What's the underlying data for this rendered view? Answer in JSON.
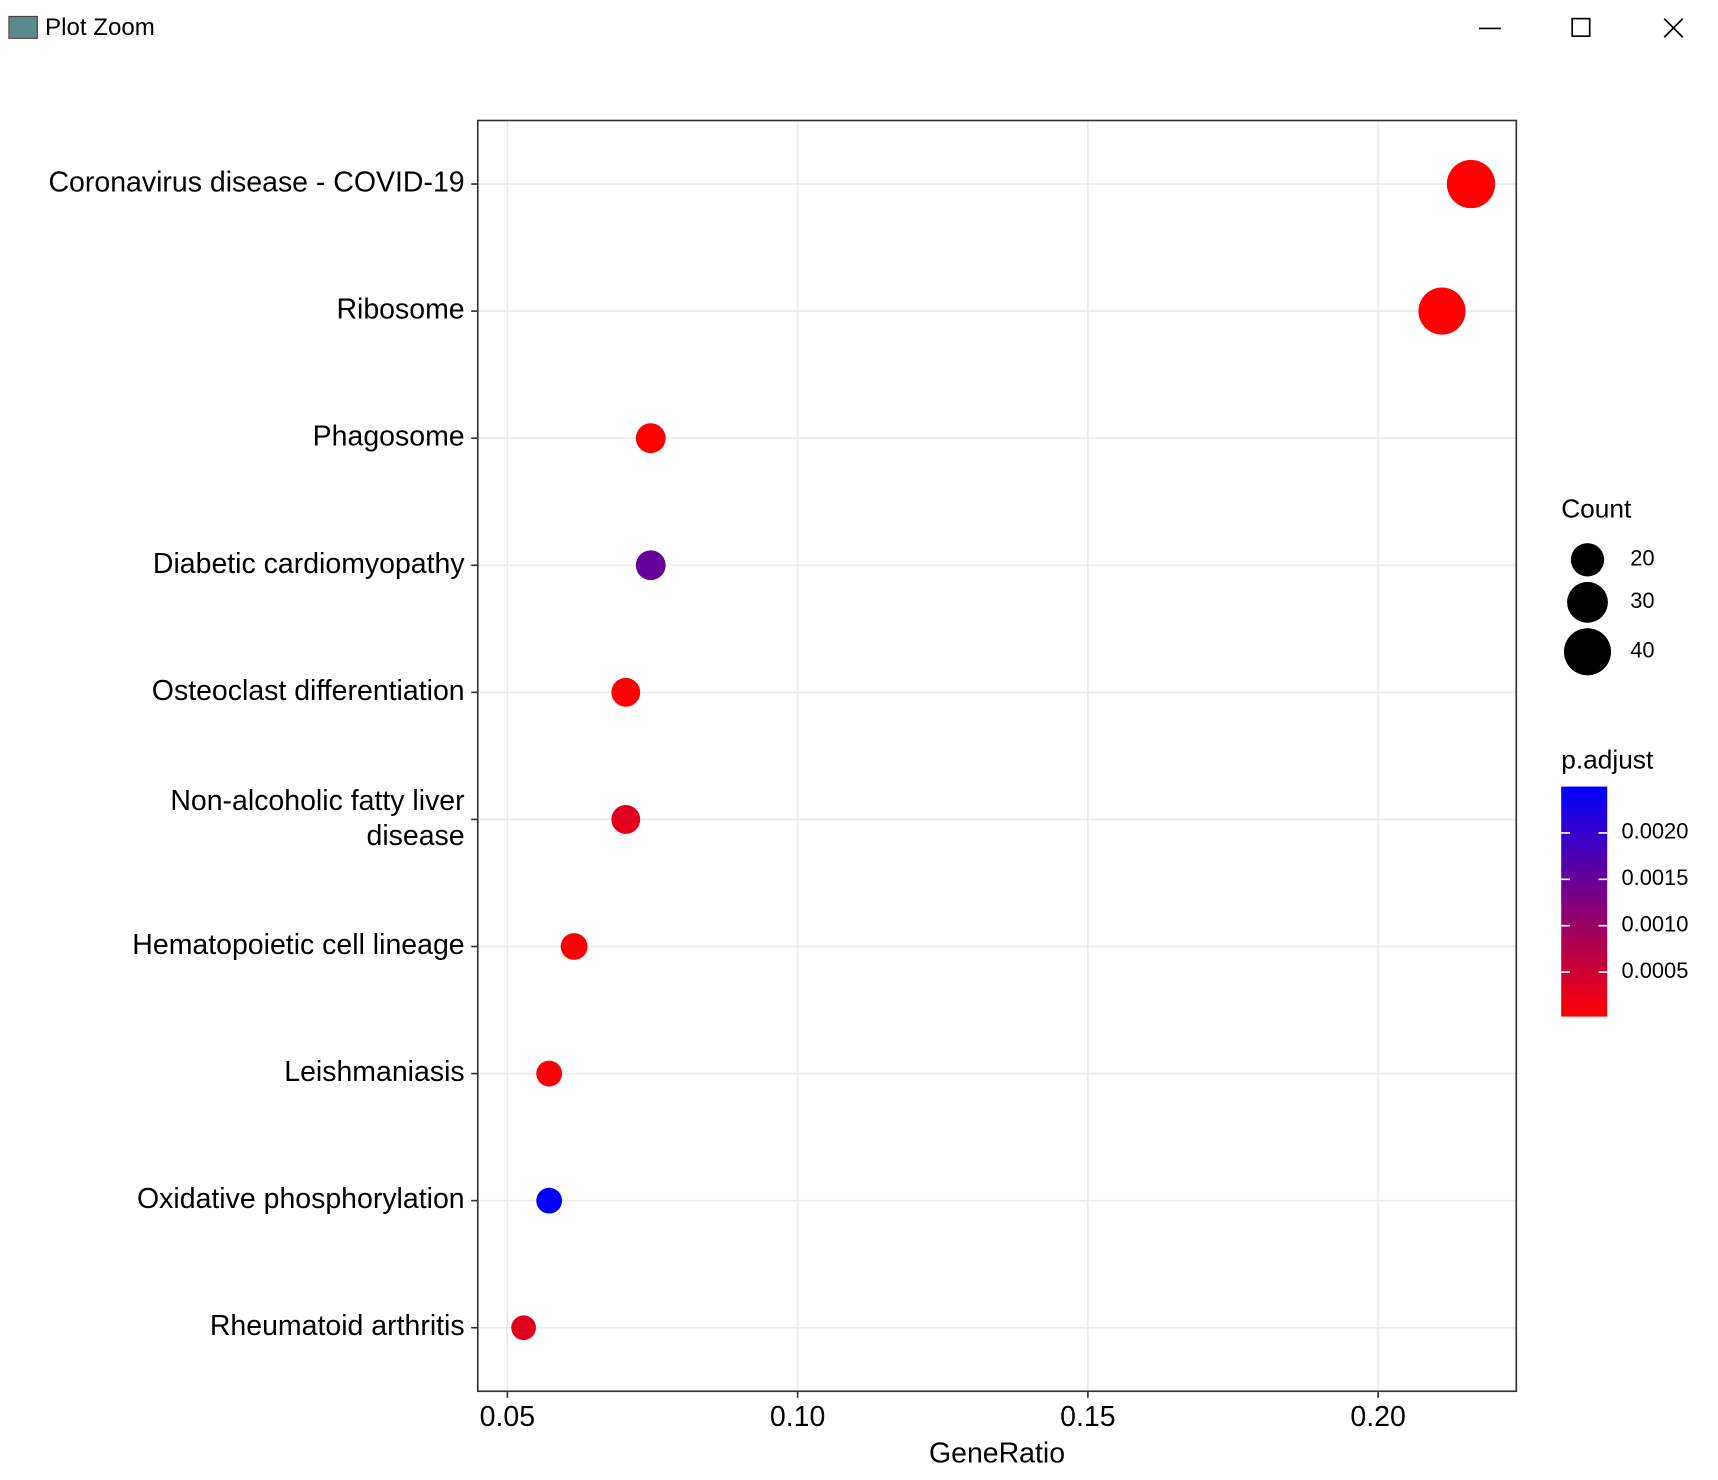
{
  "window_title": "Plot Zoom",
  "chart_data": {
    "type": "dot",
    "categories": [
      "Coronavirus disease - COVID-19",
      "Ribosome",
      "Phagosome",
      "Diabetic cardiomyopathy",
      "Osteoclast differentiation",
      "Non-alcoholic fatty liver\ndisease",
      "Hematopoietic cell lineage",
      "Leishmaniasis",
      "Oxidative phosphorylation",
      "Rheumatoid arthritis"
    ],
    "x": [
      0.216,
      0.211,
      0.0747,
      0.0747,
      0.0704,
      0.0704,
      0.0615,
      0.0572,
      0.0572,
      0.0528
    ],
    "size": [
      42,
      40,
      16,
      16,
      15,
      15,
      13,
      12,
      12,
      11
    ],
    "color_values": [
      2e-05,
      3e-05,
      4e-05,
      0.0015,
      4e-05,
      0.0003,
      3e-05,
      5e-05,
      0.0025,
      0.0003
    ],
    "xlabel": "GeneRatio",
    "xlim": [
      0.0449,
      0.2238
    ],
    "xticks": [
      0.05,
      {
        "value": 0.1,
        "label": "0.10"
      },
      0.15,
      {
        "value": 0.2,
        "label": "0.20"
      }
    ],
    "grid": true,
    "size_legend": {
      "title": "Count",
      "values": [
        20,
        30,
        40
      ]
    },
    "color_legend": {
      "title": "p.adjust",
      "lim": [
        2e-05,
        0.0025
      ],
      "low_color": "#ff0000",
      "high_color": "#0000ff",
      "ticks": [
        {
          "value": 0.002,
          "label": "0.0020"
        },
        {
          "value": 0.0015,
          "label": "0.0015"
        },
        {
          "value": 0.001,
          "label": "0.0010"
        },
        0.0005
      ]
    }
  }
}
